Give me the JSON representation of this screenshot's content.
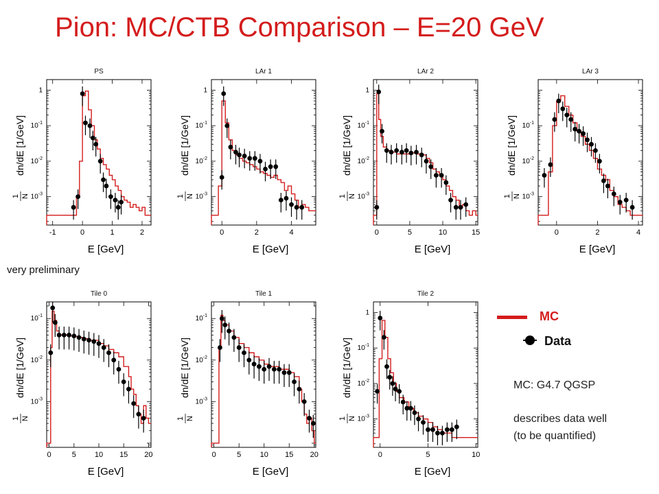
{
  "title": "Pion:  MC/CTB Comparison – E=20 GeV",
  "note_preliminary": "very preliminary",
  "legend": {
    "mc_label": "MC",
    "data_label": "Data",
    "mc_color": "#d41c1c",
    "data_color": "#000000"
  },
  "notes": {
    "generator": "MC: G4.7 QGSP",
    "line1": "describes data well",
    "line2": "(to be quantified)"
  },
  "chart_data": [
    {
      "type": "histogram+scatter",
      "title": "PS",
      "xlabel": "E [GeV]",
      "ylabel": "dn/dE [1/GeV]",
      "ylabel_frac": "1/N",
      "xlim": [
        -1.2,
        2.3
      ],
      "ylim_log": [
        -3.8,
        0.3
      ],
      "log_y": true,
      "xticks": [
        -1,
        0,
        1,
        2
      ],
      "yticks": [
        1,
        0.1,
        0.01,
        0.001
      ],
      "ytick_labels": [
        "1",
        "10^-1",
        "10^-2",
        "10^-3"
      ],
      "mc": {
        "x": [
          -1.2,
          -0.2,
          -0.1,
          0,
          0.1,
          0.2,
          0.3,
          0.4,
          0.5,
          0.6,
          0.7,
          0.8,
          0.9,
          1.0,
          1.1,
          1.2,
          1.3,
          1.4,
          1.5,
          1.6,
          1.7,
          1.8,
          1.9,
          2.0,
          2.1,
          2.2
        ],
        "y": [
          0.0003,
          0.001,
          0.01,
          0.7,
          0.95,
          0.28,
          0.1,
          0.04,
          0.022,
          0.012,
          0.008,
          0.006,
          0.004,
          0.003,
          0.002,
          0.0015,
          0.001,
          0.0008,
          0.0007,
          0.0005,
          0.0006,
          0.0005,
          0.0004,
          0.0005,
          0.0003,
          0.0003
        ]
      },
      "data": [
        {
          "x": -0.3,
          "y": 0.0005
        },
        {
          "x": -0.15,
          "y": 0.001
        },
        {
          "x": 0,
          "y": 0.8
        },
        {
          "x": 0.1,
          "y": 0.12
        },
        {
          "x": 0.25,
          "y": 0.1
        },
        {
          "x": 0.35,
          "y": 0.045
        },
        {
          "x": 0.45,
          "y": 0.03
        },
        {
          "x": 0.6,
          "y": 0.01
        },
        {
          "x": 0.7,
          "y": 0.003
        },
        {
          "x": 0.8,
          "y": 0.002
        },
        {
          "x": 0.95,
          "y": 0.001
        },
        {
          "x": 1.1,
          "y": 0.0008
        },
        {
          "x": 1.2,
          "y": 0.0005
        },
        {
          "x": 1.3,
          "y": 0.0007
        }
      ]
    },
    {
      "type": "histogram+scatter",
      "title": "LAr 1",
      "xlabel": "E [GeV]",
      "ylabel": "dn/dE [1/GeV]",
      "ylabel_frac": "1/N",
      "xlim": [
        -0.6,
        5.4
      ],
      "ylim_log": [
        -3.8,
        0.3
      ],
      "log_y": true,
      "xticks": [
        0,
        2,
        4
      ],
      "yticks": [
        1,
        0.1,
        0.01,
        0.001
      ],
      "ytick_labels": [
        "1",
        "10^-1",
        "10^-2",
        "10^-3"
      ],
      "mc": {
        "x": [
          -0.6,
          -0.2,
          0,
          0.2,
          0.4,
          0.6,
          0.8,
          1.0,
          1.2,
          1.4,
          1.6,
          1.8,
          2.0,
          2.2,
          2.4,
          2.6,
          2.8,
          3.0,
          3.2,
          3.4,
          3.6,
          3.8,
          4.0,
          4.2,
          4.4,
          4.6,
          4.8,
          5.0,
          5.2
        ],
        "y": [
          0.0003,
          0.002,
          0.5,
          0.12,
          0.04,
          0.02,
          0.015,
          0.012,
          0.01,
          0.009,
          0.008,
          0.007,
          0.006,
          0.005,
          0.0045,
          0.004,
          0.0035,
          0.004,
          0.003,
          0.0025,
          0.0015,
          0.002,
          0.0012,
          0.0008,
          0.0005,
          0.0006,
          0.0005,
          0.0004,
          0.0004
        ]
      },
      "data": [
        {
          "x": 0,
          "y": 0.0035
        },
        {
          "x": 0.1,
          "y": 0.8
        },
        {
          "x": 0.3,
          "y": 0.1
        },
        {
          "x": 0.5,
          "y": 0.025
        },
        {
          "x": 0.8,
          "y": 0.018
        },
        {
          "x": 1.0,
          "y": 0.015
        },
        {
          "x": 1.3,
          "y": 0.014
        },
        {
          "x": 1.6,
          "y": 0.012
        },
        {
          "x": 1.9,
          "y": 0.012
        },
        {
          "x": 2.2,
          "y": 0.01
        },
        {
          "x": 2.5,
          "y": 0.006
        },
        {
          "x": 2.8,
          "y": 0.007
        },
        {
          "x": 3.1,
          "y": 0.007
        },
        {
          "x": 3.4,
          "y": 0.0008
        },
        {
          "x": 3.7,
          "y": 0.0009
        },
        {
          "x": 4.0,
          "y": 0.0006
        },
        {
          "x": 4.3,
          "y": 0.0005
        },
        {
          "x": 4.6,
          "y": 0.0005
        }
      ]
    },
    {
      "type": "histogram+scatter",
      "title": "LAr 2",
      "xlabel": "E [GeV]",
      "ylabel": "dn/dE [1/GeV]",
      "ylabel_frac": "1/N",
      "xlim": [
        -0.5,
        15.3
      ],
      "ylim_log": [
        -3.8,
        0.3
      ],
      "log_y": true,
      "xticks": [
        0,
        5,
        10,
        15
      ],
      "yticks": [
        1,
        0.1,
        0.01,
        0.001
      ],
      "ytick_labels": [
        "1",
        "10^-1",
        "10^-2",
        "10^-3"
      ],
      "mc": {
        "x": [
          -0.5,
          0,
          0.3,
          0.6,
          1.0,
          1.5,
          2,
          3,
          4,
          5,
          6,
          7,
          7.5,
          8,
          8.5,
          9,
          9.5,
          10,
          10.5,
          11,
          11.5,
          12,
          12.5,
          13,
          13.5,
          14,
          14.5,
          15
        ],
        "y": [
          0.0003,
          0.8,
          0.15,
          0.05,
          0.025,
          0.02,
          0.018,
          0.016,
          0.016,
          0.017,
          0.016,
          0.015,
          0.012,
          0.009,
          0.006,
          0.005,
          0.004,
          0.003,
          0.002,
          0.0015,
          0.001,
          0.0008,
          0.0005,
          0.0006,
          0.0004,
          0.0003,
          0.0004,
          0.0003
        ]
      },
      "data": [
        {
          "x": 0,
          "y": 0.0005
        },
        {
          "x": 0.3,
          "y": 0.9
        },
        {
          "x": 0.8,
          "y": 0.07
        },
        {
          "x": 1.5,
          "y": 0.02
        },
        {
          "x": 2.2,
          "y": 0.018
        },
        {
          "x": 3,
          "y": 0.02
        },
        {
          "x": 3.8,
          "y": 0.018
        },
        {
          "x": 4.5,
          "y": 0.02
        },
        {
          "x": 5.2,
          "y": 0.017
        },
        {
          "x": 6,
          "y": 0.018
        },
        {
          "x": 6.8,
          "y": 0.015
        },
        {
          "x": 7.5,
          "y": 0.01
        },
        {
          "x": 8.2,
          "y": 0.007
        },
        {
          "x": 9,
          "y": 0.004
        },
        {
          "x": 9.8,
          "y": 0.004
        },
        {
          "x": 10.5,
          "y": 0.0025
        },
        {
          "x": 11.2,
          "y": 0.0008
        },
        {
          "x": 12,
          "y": 0.0005
        },
        {
          "x": 12.7,
          "y": 0.0005
        },
        {
          "x": 13.5,
          "y": 0.0006
        }
      ]
    },
    {
      "type": "histogram+scatter",
      "title": "LAr 3",
      "xlabel": "E [GeV]",
      "ylabel": "dn/dE [1/GeV]",
      "ylabel_frac": "1/N",
      "xlim": [
        -0.9,
        4.2
      ],
      "ylim_log": [
        -3.8,
        0.3
      ],
      "log_y": true,
      "xticks": [
        0,
        2,
        4
      ],
      "yticks": [
        0.1,
        0.01,
        0.001
      ],
      "ytick_labels": [
        "10^-1",
        "10^-2",
        "10^-3"
      ],
      "mc": {
        "x": [
          -0.9,
          -0.4,
          -0.2,
          0,
          0.2,
          0.4,
          0.6,
          0.8,
          1.0,
          1.2,
          1.4,
          1.6,
          1.8,
          2.0,
          2.2,
          2.4,
          2.6,
          2.8,
          3.0,
          3.2,
          3.4,
          3.6
        ],
        "y": [
          0.0003,
          0.005,
          0.1,
          0.5,
          0.7,
          0.35,
          0.2,
          0.12,
          0.07,
          0.05,
          0.03,
          0.02,
          0.012,
          0.006,
          0.004,
          0.003,
          0.0015,
          0.001,
          0.0006,
          0.0005,
          0.0004,
          0.0003
        ]
      },
      "data": [
        {
          "x": -0.6,
          "y": 0.004
        },
        {
          "x": -0.3,
          "y": 0.008
        },
        {
          "x": -0.1,
          "y": 0.15
        },
        {
          "x": 0.1,
          "y": 0.5
        },
        {
          "x": 0.3,
          "y": 0.3
        },
        {
          "x": 0.5,
          "y": 0.2
        },
        {
          "x": 0.7,
          "y": 0.15
        },
        {
          "x": 0.9,
          "y": 0.08
        },
        {
          "x": 1.1,
          "y": 0.07
        },
        {
          "x": 1.3,
          "y": 0.06
        },
        {
          "x": 1.5,
          "y": 0.04
        },
        {
          "x": 1.7,
          "y": 0.03
        },
        {
          "x": 1.9,
          "y": 0.02
        },
        {
          "x": 2.1,
          "y": 0.01
        },
        {
          "x": 2.3,
          "y": 0.0028
        },
        {
          "x": 2.5,
          "y": 0.002
        },
        {
          "x": 2.8,
          "y": 0.0012
        },
        {
          "x": 3.1,
          "y": 0.0007
        },
        {
          "x": 3.4,
          "y": 0.0008
        },
        {
          "x": 3.7,
          "y": 0.0005
        }
      ]
    },
    {
      "type": "histogram+scatter",
      "title": "Tile 0",
      "xlabel": "E [GeV]",
      "ylabel": "dn/dE [1/GeV]",
      "ylabel_frac": "1/N",
      "xlim": [
        -0.5,
        20.5
      ],
      "ylim_log": [
        -4.1,
        -0.6
      ],
      "log_y": true,
      "xticks": [
        0,
        5,
        10,
        15,
        20
      ],
      "yticks": [
        0.1,
        0.01,
        0.001
      ],
      "ytick_labels": [
        "10^-1",
        "10^-2",
        "10^-3"
      ],
      "mc": {
        "x": [
          -0.5,
          0.3,
          0.6,
          1.0,
          1.5,
          2,
          3,
          4,
          5,
          6,
          7,
          8,
          9,
          10,
          11,
          12,
          13,
          14,
          15,
          16,
          16.5,
          17,
          17.5,
          18,
          18.5,
          19,
          19.5,
          20
        ],
        "y": [
          0.0001,
          0.02,
          0.15,
          0.09,
          0.05,
          0.04,
          0.04,
          0.038,
          0.037,
          0.035,
          0.033,
          0.03,
          0.03,
          0.025,
          0.022,
          0.018,
          0.015,
          0.012,
          0.007,
          0.004,
          0.002,
          0.0015,
          0.0008,
          0.0005,
          0.0003,
          0.0008,
          0.0004,
          0.0003
        ]
      },
      "data": [
        {
          "x": 0.3,
          "y": 0.015
        },
        {
          "x": 0.7,
          "y": 0.18
        },
        {
          "x": 1.2,
          "y": 0.08
        },
        {
          "x": 2,
          "y": 0.04
        },
        {
          "x": 3,
          "y": 0.04
        },
        {
          "x": 4,
          "y": 0.04
        },
        {
          "x": 5,
          "y": 0.038
        },
        {
          "x": 6,
          "y": 0.035
        },
        {
          "x": 7,
          "y": 0.032
        },
        {
          "x": 8,
          "y": 0.03
        },
        {
          "x": 9,
          "y": 0.028
        },
        {
          "x": 10,
          "y": 0.025
        },
        {
          "x": 11,
          "y": 0.02
        },
        {
          "x": 12,
          "y": 0.015
        },
        {
          "x": 13,
          "y": 0.01
        },
        {
          "x": 14,
          "y": 0.006
        },
        {
          "x": 15,
          "y": 0.003
        },
        {
          "x": 16,
          "y": 0.002
        },
        {
          "x": 17,
          "y": 0.0009
        },
        {
          "x": 18,
          "y": 0.0005
        },
        {
          "x": 19,
          "y": 0.0004
        }
      ]
    },
    {
      "type": "histogram+scatter",
      "title": "Tile 1",
      "xlabel": "E [GeV]",
      "ylabel": "dn/dE [1/GeV]",
      "ylabel_frac": "1/N",
      "xlim": [
        -0.5,
        20.3
      ],
      "ylim_log": [
        -4.1,
        -0.6
      ],
      "log_y": true,
      "xticks": [
        0,
        5,
        10,
        15,
        20
      ],
      "yticks": [
        0.1,
        0.01,
        0.001
      ],
      "ytick_labels": [
        "10^-1",
        "10^-2",
        "10^-3"
      ],
      "mc": {
        "x": [
          -0.5,
          1.0,
          1.4,
          1.8,
          2.2,
          3,
          4,
          5,
          6,
          7,
          8,
          9,
          10,
          11,
          12,
          13,
          14,
          15,
          16,
          17,
          17.5,
          18,
          18.5,
          19,
          19.5,
          20
        ],
        "y": [
          0.0001,
          0.02,
          0.12,
          0.09,
          0.07,
          0.05,
          0.035,
          0.025,
          0.02,
          0.015,
          0.012,
          0.01,
          0.008,
          0.007,
          0.007,
          0.006,
          0.006,
          0.005,
          0.004,
          0.002,
          0.001,
          0.0005,
          0.0003,
          0.0004,
          0.0002,
          0.0001
        ]
      },
      "data": [
        {
          "x": 1.2,
          "y": 0.02
        },
        {
          "x": 1.6,
          "y": 0.1
        },
        {
          "x": 2.2,
          "y": 0.07
        },
        {
          "x": 3,
          "y": 0.05
        },
        {
          "x": 4,
          "y": 0.035
        },
        {
          "x": 5,
          "y": 0.02
        },
        {
          "x": 6,
          "y": 0.015
        },
        {
          "x": 7,
          "y": 0.01
        },
        {
          "x": 8,
          "y": 0.008
        },
        {
          "x": 9,
          "y": 0.007
        },
        {
          "x": 10,
          "y": 0.006
        },
        {
          "x": 11,
          "y": 0.007
        },
        {
          "x": 12,
          "y": 0.006
        },
        {
          "x": 13,
          "y": 0.006
        },
        {
          "x": 14,
          "y": 0.005
        },
        {
          "x": 15,
          "y": 0.005
        },
        {
          "x": 16,
          "y": 0.003
        },
        {
          "x": 17,
          "y": 0.002
        },
        {
          "x": 18,
          "y": 0.001
        },
        {
          "x": 19,
          "y": 0.0004
        },
        {
          "x": 19.8,
          "y": 0.0003
        }
      ]
    },
    {
      "type": "histogram+scatter",
      "title": "Tile 2",
      "xlabel": "E [GeV]",
      "ylabel": "dn/dE [1/GeV]",
      "ylabel_frac": "1/N",
      "xlim": [
        -0.7,
        10.2
      ],
      "ylim_log": [
        -3.8,
        0.3
      ],
      "log_y": true,
      "xticks": [
        0,
        5,
        10
      ],
      "yticks": [
        1,
        0.1,
        0.01,
        0.001
      ],
      "ytick_labels": [
        "1",
        "10^-1",
        "10^-2",
        "10^-3"
      ],
      "mc": {
        "x": [
          -0.7,
          -0.1,
          0.2,
          0.5,
          0.8,
          1.1,
          1.4,
          1.7,
          2.0,
          2.5,
          3,
          3.5,
          4,
          4.5,
          5,
          5.5,
          6,
          6.5,
          7,
          7.5,
          8,
          8.5,
          9
        ],
        "y": [
          0.0003,
          0.05,
          0.6,
          0.2,
          0.05,
          0.02,
          0.01,
          0.006,
          0.004,
          0.003,
          0.002,
          0.0015,
          0.0012,
          0.001,
          0.0008,
          0.0006,
          0.0005,
          0.0004,
          0.0004,
          0.0003,
          0.0003,
          0.0003,
          0.0003
        ]
      },
      "data": [
        {
          "x": -0.3,
          "y": 0.006
        },
        {
          "x": 0,
          "y": 0.7
        },
        {
          "x": 0.4,
          "y": 0.2
        },
        {
          "x": 0.7,
          "y": 0.03
        },
        {
          "x": 1.0,
          "y": 0.015
        },
        {
          "x": 1.3,
          "y": 0.01
        },
        {
          "x": 1.6,
          "y": 0.007
        },
        {
          "x": 2.0,
          "y": 0.006
        },
        {
          "x": 2.4,
          "y": 0.003
        },
        {
          "x": 2.8,
          "y": 0.002
        },
        {
          "x": 3.2,
          "y": 0.002
        },
        {
          "x": 3.6,
          "y": 0.0015
        },
        {
          "x": 4.0,
          "y": 0.001
        },
        {
          "x": 4.5,
          "y": 0.0008
        },
        {
          "x": 5,
          "y": 0.0005
        },
        {
          "x": 5.5,
          "y": 0.0005
        },
        {
          "x": 6,
          "y": 0.0004
        },
        {
          "x": 6.5,
          "y": 0.0004
        },
        {
          "x": 7,
          "y": 0.0005
        },
        {
          "x": 7.5,
          "y": 0.0005
        },
        {
          "x": 8,
          "y": 0.0006
        }
      ]
    }
  ]
}
